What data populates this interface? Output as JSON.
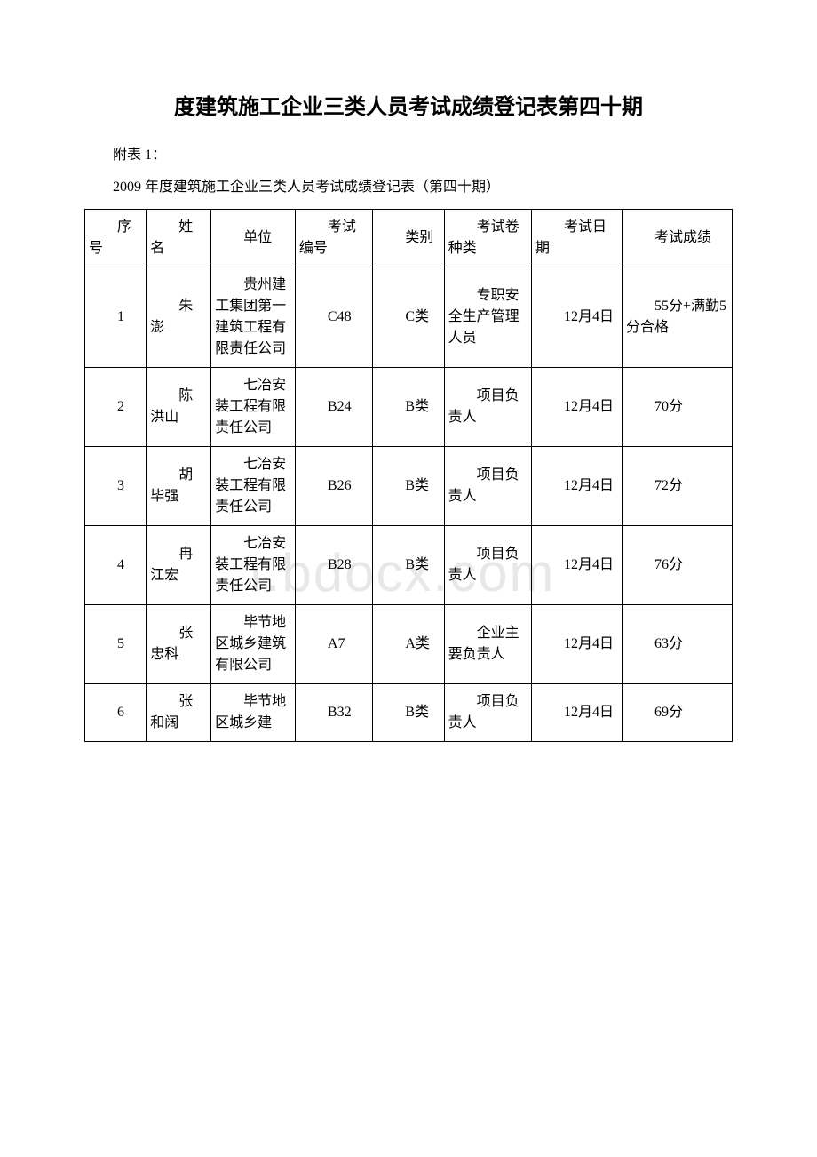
{
  "title": "度建筑施工企业三类人员考试成绩登记表第四十期",
  "subtitle1": "附表 1：",
  "subtitle2": "2009 年度建筑施工企业三类人员考试成绩登记表（第四十期）",
  "watermark": "ı.bdocx.com",
  "table": {
    "headers": [
      "序号",
      "姓名",
      "单位",
      "考试编号",
      "类别",
      "考试卷种类",
      "考试日期",
      "考试成绩"
    ],
    "rows": [
      [
        "1",
        "朱澎",
        "贵州建工集团第一建筑工程有限责任公司",
        "C48",
        "C类",
        "专职安全生产管理人员",
        "12月4日",
        "55分+满勤5分合格"
      ],
      [
        "2",
        "陈洪山",
        "七冶安装工程有限责任公司",
        "B24",
        "B类",
        "项目负责人",
        "12月4日",
        "70分"
      ],
      [
        "3",
        "胡毕强",
        "七冶安装工程有限责任公司",
        "B26",
        "B类",
        "项目负责人",
        "12月4日",
        "72分"
      ],
      [
        "4",
        "冉江宏",
        "七冶安装工程有限责任公司",
        "B28",
        "B类",
        "项目负责人",
        "12月4日",
        "76分"
      ],
      [
        "5",
        "张忠科",
        "毕节地区城乡建筑有限公司",
        "A7",
        "A类",
        "企业主要负责人",
        "12月4日",
        "63分"
      ],
      [
        "6",
        "张和阔",
        "毕节地区城乡建",
        "B32",
        "B类",
        "项目负责人",
        "12月4日",
        "69分"
      ]
    ],
    "column_classes": [
      "col-0",
      "col-1",
      "col-2",
      "col-3",
      "col-4",
      "col-5",
      "col-6",
      "col-7"
    ]
  }
}
